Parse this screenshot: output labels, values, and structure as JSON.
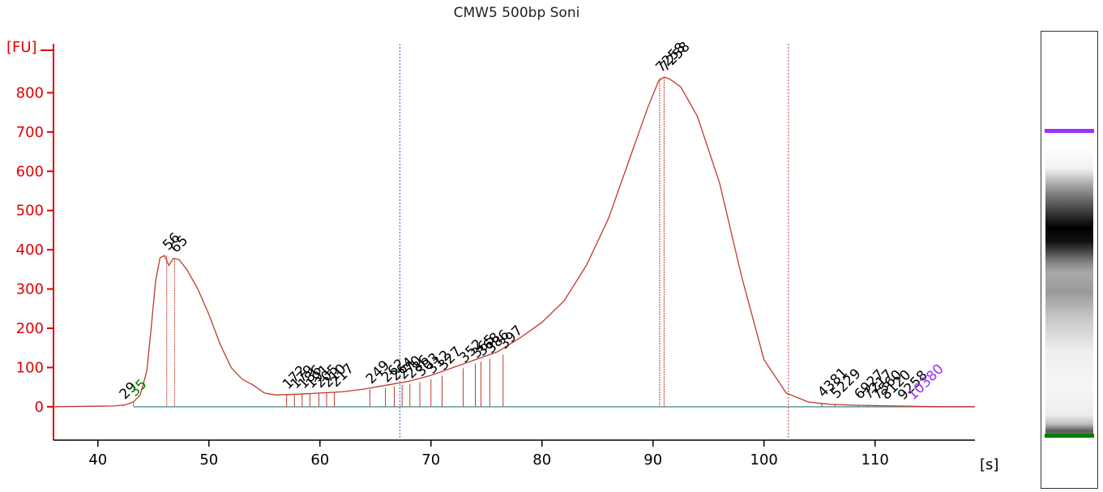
{
  "chart_data": {
    "type": "line",
    "title": "CMW5 500bp Soni",
    "ylabel": "[FU]",
    "xlabel": "[s]",
    "xlim": [
      36,
      119
    ],
    "ylim": [
      -85,
      900
    ],
    "x_ticks": [
      40,
      50,
      60,
      70,
      80,
      90,
      100,
      110
    ],
    "y_ticks": [
      0,
      100,
      200,
      300,
      400,
      500,
      600,
      700,
      800
    ],
    "series": [
      {
        "x": [
          36,
          41.5,
          42.5,
          43.2,
          43.8,
          44.4,
          44.8,
          45.2,
          45.6,
          46.0,
          46.4,
          46.8,
          47.3,
          48.0,
          49.0,
          50.0,
          51.0,
          52.0,
          53.0,
          54.0,
          55.0,
          56.0,
          58.0,
          60.0,
          62.0,
          64.0,
          66.0,
          68.0,
          70.0,
          72.0,
          74.0,
          76.0,
          78.0,
          80.0,
          82.0,
          84.0,
          86.0,
          88.0,
          89.5,
          90.5,
          91.0,
          91.5,
          92.5,
          94.0,
          96.0,
          98.0,
          100.0,
          102.0,
          104.0,
          106.0,
          108.0,
          110.0,
          112.0,
          114.0,
          116.0,
          119.0
        ],
        "values": [
          0,
          2,
          5,
          12,
          30,
          90,
          200,
          320,
          380,
          385,
          360,
          378,
          375,
          350,
          300,
          235,
          160,
          100,
          70,
          55,
          35,
          30,
          32,
          35,
          38,
          45,
          55,
          65,
          80,
          100,
          120,
          140,
          175,
          215,
          270,
          360,
          480,
          640,
          760,
          830,
          840,
          835,
          815,
          740,
          570,
          330,
          120,
          35,
          12,
          6,
          4,
          3,
          2,
          1,
          0,
          0
        ]
      }
    ],
    "baseline": 0,
    "window_markers": [
      67.2,
      102.2
    ],
    "peak_labels": [
      {
        "text": "29",
        "x": 42.3,
        "y": 5,
        "color": "#000000",
        "anchor": true
      },
      {
        "text": "35",
        "x": 43.2,
        "y": 12,
        "color": "#008000",
        "anchor": true
      },
      {
        "text": "56",
        "x": 46.2,
        "y": 385,
        "color": "#000000",
        "anchor": true
      },
      {
        "text": "65",
        "x": 46.9,
        "y": 378,
        "color": "#000000",
        "anchor": true
      },
      {
        "text": "172",
        "x": 57.0,
        "y": 31,
        "color": "#000000"
      },
      {
        "text": "179",
        "x": 57.7,
        "y": 32,
        "color": "#000000"
      },
      {
        "text": "186",
        "x": 58.4,
        "y": 32,
        "color": "#000000"
      },
      {
        "text": "191",
        "x": 59.1,
        "y": 33,
        "color": "#000000"
      },
      {
        "text": "205",
        "x": 59.9,
        "y": 34,
        "color": "#000000"
      },
      {
        "text": "210",
        "x": 60.6,
        "y": 35,
        "color": "#000000"
      },
      {
        "text": "217",
        "x": 61.3,
        "y": 36,
        "color": "#000000"
      },
      {
        "text": "249",
        "x": 64.5,
        "y": 44,
        "color": "#000000"
      },
      {
        "text": "262",
        "x": 65.9,
        "y": 48,
        "color": "#000000"
      },
      {
        "text": "264",
        "x": 66.7,
        "y": 52,
        "color": "#000000"
      },
      {
        "text": "270",
        "x": 67.4,
        "y": 56,
        "color": "#000000"
      },
      {
        "text": "286",
        "x": 68.1,
        "y": 58,
        "color": "#000000"
      },
      {
        "text": "303",
        "x": 69.0,
        "y": 63,
        "color": "#000000"
      },
      {
        "text": "312",
        "x": 70.0,
        "y": 70,
        "color": "#000000"
      },
      {
        "text": "327",
        "x": 71.0,
        "y": 79,
        "color": "#000000"
      },
      {
        "text": "352",
        "x": 72.9,
        "y": 98,
        "color": "#000000"
      },
      {
        "text": "365",
        "x": 74.0,
        "y": 110,
        "color": "#000000"
      },
      {
        "text": "368",
        "x": 74.5,
        "y": 115,
        "color": "#000000"
      },
      {
        "text": "386",
        "x": 75.3,
        "y": 122,
        "color": "#000000"
      },
      {
        "text": "397",
        "x": 76.5,
        "y": 133,
        "color": "#000000"
      },
      {
        "text": "7258",
        "x": 90.6,
        "y": 838,
        "color": "#000000",
        "anchor": true
      },
      {
        "text": "7258",
        "x": 91.0,
        "y": 840,
        "color": "#000000",
        "anchor": true
      },
      {
        "text": "4381",
        "x": 105.2,
        "y": 10,
        "color": "#000000"
      },
      {
        "text": "5229",
        "x": 106.4,
        "y": 7,
        "color": "#000000"
      },
      {
        "text": "6927",
        "x": 108.5,
        "y": 5,
        "color": "#000000"
      },
      {
        "text": "7217",
        "x": 109.3,
        "y": 5,
        "color": "#000000"
      },
      {
        "text": "7560",
        "x": 110.1,
        "y": 4,
        "color": "#000000"
      },
      {
        "text": "8120",
        "x": 110.9,
        "y": 4,
        "color": "#000000"
      },
      {
        "text": "9258",
        "x": 112.4,
        "y": 3,
        "color": "#000000"
      },
      {
        "text": "10380",
        "x": 113.3,
        "y": 3,
        "color": "#9b30ff"
      }
    ],
    "colors": {
      "axis": "#e00000",
      "trace": "#c0392b",
      "baseline": "#5a9e9e",
      "marker_blue": "#3a57c5",
      "marker_red": "#c0392b",
      "upper_marker": "#9b30ff",
      "lower_marker": "#008000"
    },
    "grid": false
  },
  "gel": {
    "upper_band_color": "#9b30ff",
    "lower_band_color": "#008000"
  }
}
